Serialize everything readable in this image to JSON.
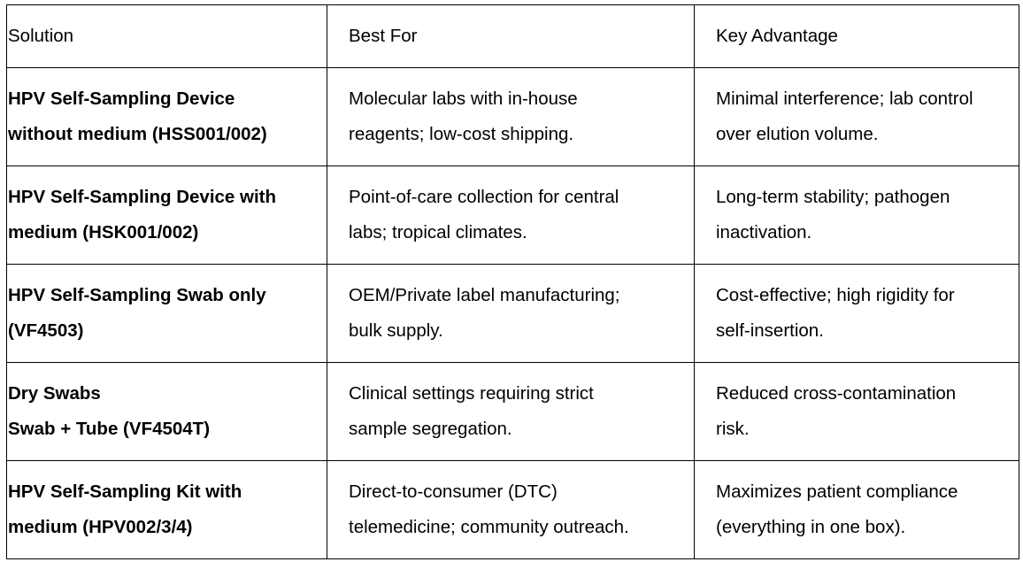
{
  "table": {
    "header": [
      "Solution",
      "Best For",
      "Key Advantage"
    ],
    "rows": [
      [
        [
          "HPV Self-Sampling Device",
          "without medium (HSS001/002)"
        ],
        [
          "Molecular labs with in-house",
          "reagents; low-cost shipping."
        ],
        [
          "Minimal interference; lab control",
          "over elution volume."
        ]
      ],
      [
        [
          "HPV Self-Sampling Device with",
          "medium (HSK001/002)"
        ],
        [
          "Point-of-care collection for central",
          "labs; tropical climates."
        ],
        [
          "Long-term stability; pathogen",
          "inactivation."
        ]
      ],
      [
        [
          "HPV Self-Sampling Swab only",
          "(VF4503)"
        ],
        [
          "OEM/Private label manufacturing;",
          "bulk supply."
        ],
        [
          "Cost-effective; high rigidity for",
          "self-insertion."
        ]
      ],
      [
        [
          "Dry Swabs",
          "Swab + Tube (VF4504T)"
        ],
        [
          "Clinical settings requiring strict",
          "sample segregation."
        ],
        [
          "Reduced cross-contamination",
          "risk."
        ]
      ],
      [
        [
          "HPV Self-Sampling Kit with",
          "medium (HPV002/3/4)"
        ],
        [
          "Direct-to-consumer (DTC)",
          "telemedicine; community outreach."
        ],
        [
          "Maximizes patient compliance",
          "(everything in one box)."
        ]
      ]
    ]
  }
}
